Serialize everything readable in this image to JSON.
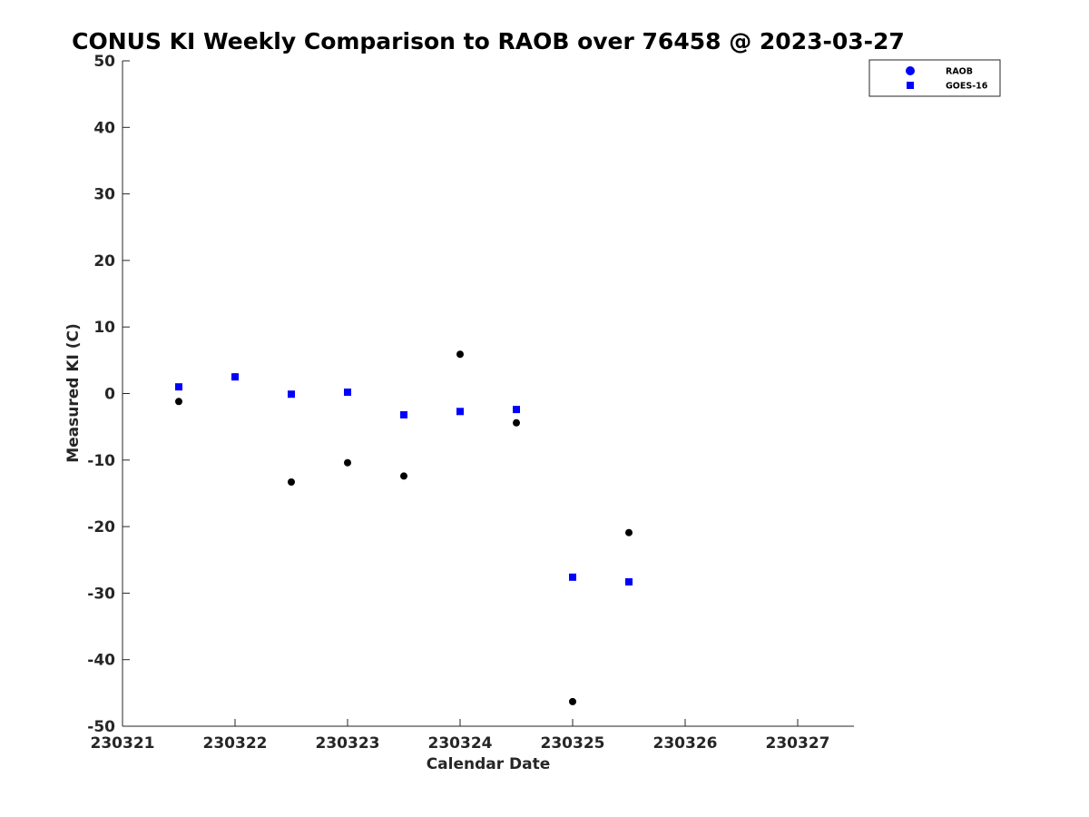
{
  "chart_data": {
    "type": "scatter",
    "title": "CONUS KI Weekly Comparison to RAOB over 76458 @ 2023-03-27",
    "xlabel": "Calendar Date",
    "ylabel": "Measured KI (C)",
    "xlim": [
      230321,
      230327.5
    ],
    "ylim": [
      -50,
      50
    ],
    "xticks": [
      230321,
      230322,
      230323,
      230324,
      230325,
      230326,
      230327
    ],
    "xtick_labels": [
      "230321",
      "230322",
      "230323",
      "230324",
      "230325",
      "230326",
      "230327"
    ],
    "yticks": [
      50,
      40,
      30,
      20,
      10,
      0,
      -10,
      -20,
      -30,
      -40,
      -50
    ],
    "ytick_labels": [
      "50",
      "40",
      "30",
      "20",
      "10",
      "0",
      "-10",
      "-20",
      "-30",
      "-40",
      "-50"
    ],
    "grid": false,
    "legend_position": "top-right",
    "series": [
      {
        "name": "RAOB",
        "marker": "circle",
        "legend_color": "#0000ff",
        "color": "#000000",
        "x": [
          230321.5,
          230322,
          230322.5,
          230323,
          230323.5,
          230324,
          230324.5,
          230325,
          230325.5
        ],
        "y": [
          -1.2,
          2.5,
          -13.3,
          -10.4,
          -12.4,
          5.9,
          -4.4,
          -46.3,
          -20.9
        ]
      },
      {
        "name": "GOES-16",
        "marker": "square",
        "legend_color": "#0000ff",
        "color": "#0000ff",
        "x": [
          230321.5,
          230322,
          230322.5,
          230323,
          230323.5,
          230324,
          230324.5,
          230325,
          230325.5
        ],
        "y": [
          1.0,
          2.5,
          -0.1,
          0.2,
          -3.2,
          -2.7,
          -2.4,
          -27.6,
          -28.3
        ]
      }
    ]
  }
}
